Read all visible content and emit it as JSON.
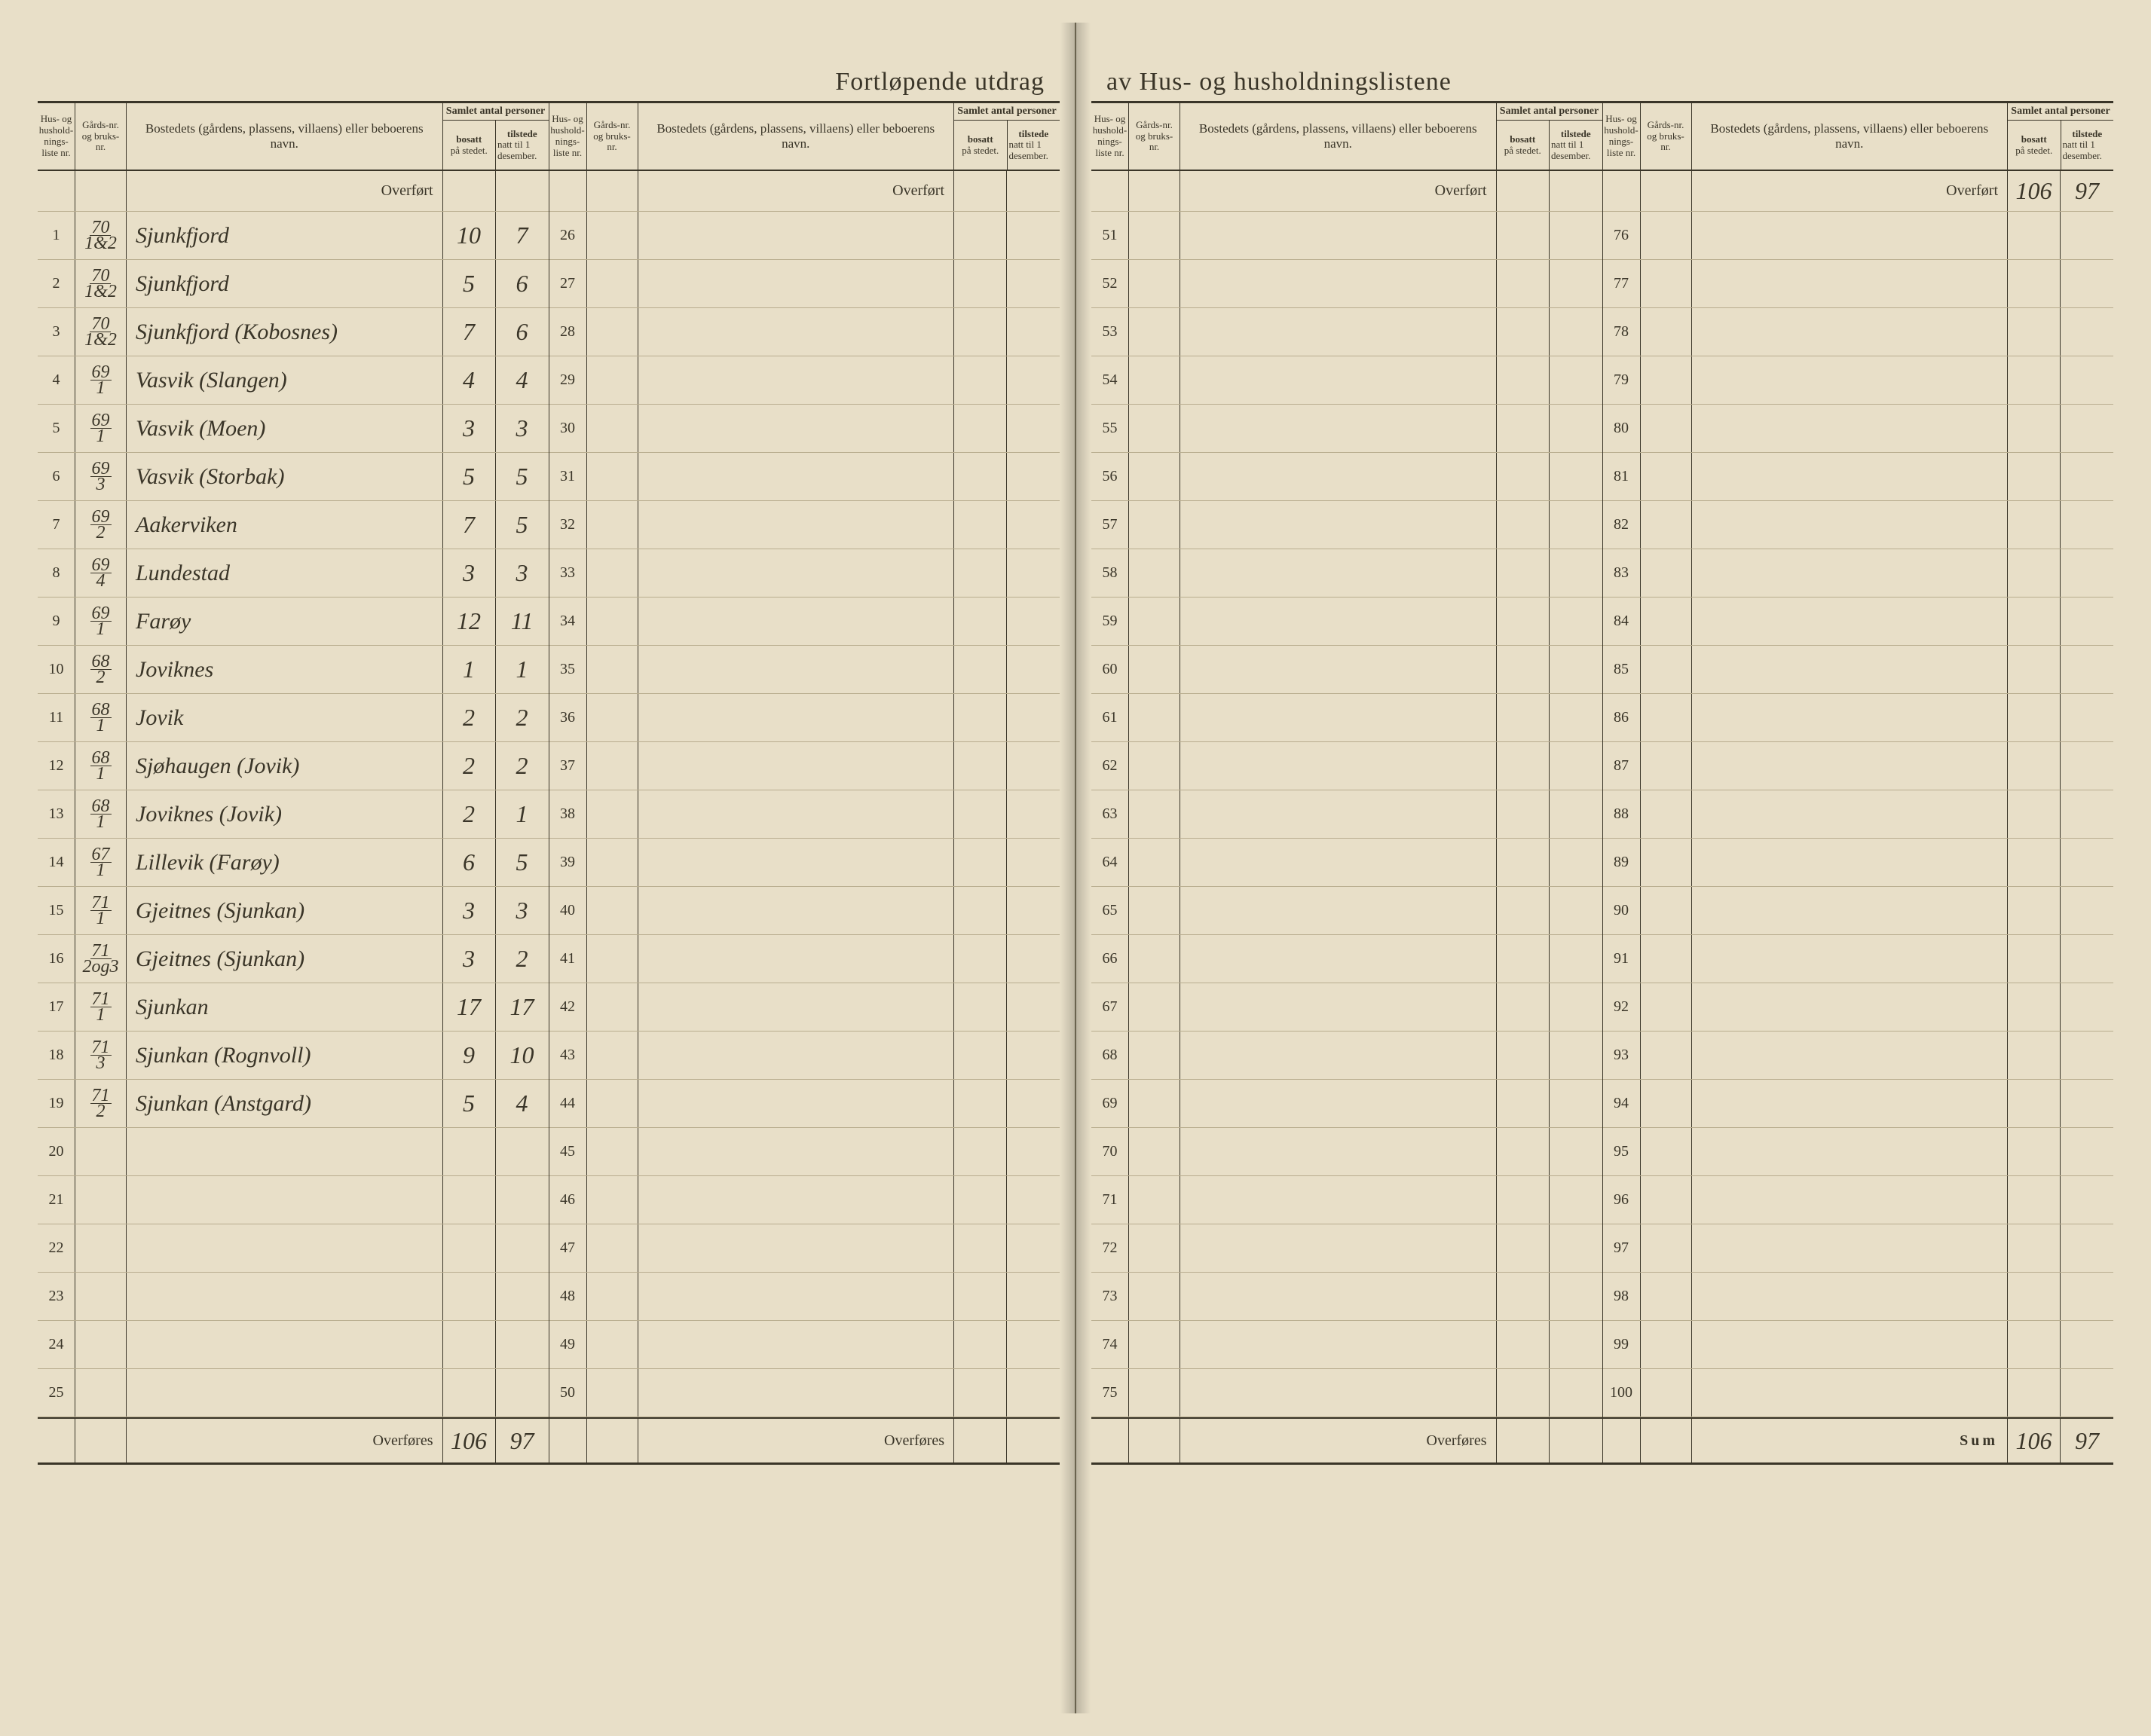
{
  "title_left": "Fortløpende utdrag",
  "title_right": "av Hus- og husholdningslistene",
  "headers": {
    "nr": "Hus- og hushold-nings-liste nr.",
    "gard": "Gårds-nr. og bruks-nr.",
    "bost": "Bostedets (gårdens, plassens, villaens) eller beboerens navn.",
    "count_group": "Samlet antal personer",
    "bosatt": "bosatt på stedet.",
    "tilstede": "tilstede natt til 1 desember."
  },
  "overfort_label": "Overført",
  "overfores_label": "Overføres",
  "sum_label": "Sum",
  "panels": [
    {
      "rows": [
        {
          "nr": "1",
          "gard_n": "70",
          "gard_d": "1&2",
          "bost": "Sjunkfjord",
          "bo": "10",
          "ti": "7"
        },
        {
          "nr": "2",
          "gard_n": "70",
          "gard_d": "1&2",
          "bost": "Sjunkfjord",
          "bo": "5",
          "ti": "6"
        },
        {
          "nr": "3",
          "gard_n": "70",
          "gard_d": "1&2",
          "bost": "Sjunkfjord (Kobosnes)",
          "bo": "7",
          "ti": "6"
        },
        {
          "nr": "4",
          "gard_n": "69",
          "gard_d": "1",
          "bost": "Vasvik (Slangen)",
          "bo": "4",
          "ti": "4"
        },
        {
          "nr": "5",
          "gard_n": "69",
          "gard_d": "1",
          "bost": "Vasvik (Moen)",
          "bo": "3",
          "ti": "3"
        },
        {
          "nr": "6",
          "gard_n": "69",
          "gard_d": "3",
          "bost": "Vasvik (Storbak)",
          "bo": "5",
          "ti": "5"
        },
        {
          "nr": "7",
          "gard_n": "69",
          "gard_d": "2",
          "bost": "Aakerviken",
          "bo": "7",
          "ti": "5"
        },
        {
          "nr": "8",
          "gard_n": "69",
          "gard_d": "4",
          "bost": "Lundestad",
          "bo": "3",
          "ti": "3"
        },
        {
          "nr": "9",
          "gard_n": "69",
          "gard_d": "1",
          "bost": "Farøy",
          "bo": "12",
          "ti": "11"
        },
        {
          "nr": "10",
          "gard_n": "68",
          "gard_d": "2",
          "bost": "Joviknes",
          "bo": "1",
          "ti": "1"
        },
        {
          "nr": "11",
          "gard_n": "68",
          "gard_d": "1",
          "bost": "Jovik",
          "bo": "2",
          "ti": "2"
        },
        {
          "nr": "12",
          "gard_n": "68",
          "gard_d": "1",
          "bost": "Sjøhaugen (Jovik)",
          "bo": "2",
          "ti": "2"
        },
        {
          "nr": "13",
          "gard_n": "68",
          "gard_d": "1",
          "bost": "Joviknes (Jovik)",
          "bo": "2",
          "ti": "1"
        },
        {
          "nr": "14",
          "gard_n": "67",
          "gard_d": "1",
          "bost": "Lillevik (Farøy)",
          "bo": "6",
          "ti": "5"
        },
        {
          "nr": "15",
          "gard_n": "71",
          "gard_d": "1",
          "bost": "Gjeitnes (Sjunkan)",
          "bo": "3",
          "ti": "3"
        },
        {
          "nr": "16",
          "gard_n": "71",
          "gard_d": "2og3",
          "bost": "Gjeitnes (Sjunkan)",
          "bo": "3",
          "ti": "2"
        },
        {
          "nr": "17",
          "gard_n": "71",
          "gard_d": "1",
          "bost": "Sjunkan",
          "bo": "17",
          "ti": "17"
        },
        {
          "nr": "18",
          "gard_n": "71",
          "gard_d": "3",
          "bost": "Sjunkan (Rognvoll)",
          "bo": "9",
          "ti": "10"
        },
        {
          "nr": "19",
          "gard_n": "71",
          "gard_d": "2",
          "bost": "Sjunkan (Anstgard)",
          "bo": "5",
          "ti": "4"
        },
        {
          "nr": "20",
          "gard_n": "",
          "gard_d": "",
          "bost": "",
          "bo": "",
          "ti": ""
        },
        {
          "nr": "21",
          "gard_n": "",
          "gard_d": "",
          "bost": "",
          "bo": "",
          "ti": ""
        },
        {
          "nr": "22",
          "gard_n": "",
          "gard_d": "",
          "bost": "",
          "bo": "",
          "ti": ""
        },
        {
          "nr": "23",
          "gard_n": "",
          "gard_d": "",
          "bost": "",
          "bo": "",
          "ti": ""
        },
        {
          "nr": "24",
          "gard_n": "",
          "gard_d": "",
          "bost": "",
          "bo": "",
          "ti": ""
        },
        {
          "nr": "25",
          "gard_n": "",
          "gard_d": "",
          "bost": "",
          "bo": "",
          "ti": ""
        }
      ],
      "overfort_bo": "",
      "overfort_ti": "",
      "footer_label": "Overføres",
      "footer_bo": "106",
      "footer_ti": "97"
    },
    {
      "rows": [
        {
          "nr": "26"
        },
        {
          "nr": "27"
        },
        {
          "nr": "28"
        },
        {
          "nr": "29"
        },
        {
          "nr": "30"
        },
        {
          "nr": "31"
        },
        {
          "nr": "32"
        },
        {
          "nr": "33"
        },
        {
          "nr": "34"
        },
        {
          "nr": "35"
        },
        {
          "nr": "36"
        },
        {
          "nr": "37"
        },
        {
          "nr": "38"
        },
        {
          "nr": "39"
        },
        {
          "nr": "40"
        },
        {
          "nr": "41"
        },
        {
          "nr": "42"
        },
        {
          "nr": "43"
        },
        {
          "nr": "44"
        },
        {
          "nr": "45"
        },
        {
          "nr": "46"
        },
        {
          "nr": "47"
        },
        {
          "nr": "48"
        },
        {
          "nr": "49"
        },
        {
          "nr": "50"
        }
      ],
      "overfort_bo": "",
      "overfort_ti": "",
      "footer_label": "Overføres",
      "footer_bo": "",
      "footer_ti": ""
    },
    {
      "rows": [
        {
          "nr": "51"
        },
        {
          "nr": "52"
        },
        {
          "nr": "53"
        },
        {
          "nr": "54"
        },
        {
          "nr": "55"
        },
        {
          "nr": "56"
        },
        {
          "nr": "57"
        },
        {
          "nr": "58"
        },
        {
          "nr": "59"
        },
        {
          "nr": "60"
        },
        {
          "nr": "61"
        },
        {
          "nr": "62"
        },
        {
          "nr": "63"
        },
        {
          "nr": "64"
        },
        {
          "nr": "65"
        },
        {
          "nr": "66"
        },
        {
          "nr": "67"
        },
        {
          "nr": "68"
        },
        {
          "nr": "69"
        },
        {
          "nr": "70"
        },
        {
          "nr": "71"
        },
        {
          "nr": "72"
        },
        {
          "nr": "73"
        },
        {
          "nr": "74"
        },
        {
          "nr": "75"
        }
      ],
      "overfort_bo": "",
      "overfort_ti": "",
      "footer_label": "Overføres",
      "footer_bo": "",
      "footer_ti": ""
    },
    {
      "rows": [
        {
          "nr": "76"
        },
        {
          "nr": "77"
        },
        {
          "nr": "78"
        },
        {
          "nr": "79"
        },
        {
          "nr": "80"
        },
        {
          "nr": "81"
        },
        {
          "nr": "82"
        },
        {
          "nr": "83"
        },
        {
          "nr": "84"
        },
        {
          "nr": "85"
        },
        {
          "nr": "86"
        },
        {
          "nr": "87"
        },
        {
          "nr": "88"
        },
        {
          "nr": "89"
        },
        {
          "nr": "90"
        },
        {
          "nr": "91"
        },
        {
          "nr": "92"
        },
        {
          "nr": "93"
        },
        {
          "nr": "94"
        },
        {
          "nr": "95"
        },
        {
          "nr": "96"
        },
        {
          "nr": "97"
        },
        {
          "nr": "98"
        },
        {
          "nr": "99"
        },
        {
          "nr": "100"
        }
      ],
      "overfort_bo": "106",
      "overfort_ti": "97",
      "footer_label": "Sum",
      "footer_bo": "106",
      "footer_ti": "97"
    }
  ],
  "colors": {
    "paper": "#e8dfc8",
    "ink": "#3a3528",
    "rule_light": "#b8ad8f",
    "handwriting": "#4a4230"
  }
}
